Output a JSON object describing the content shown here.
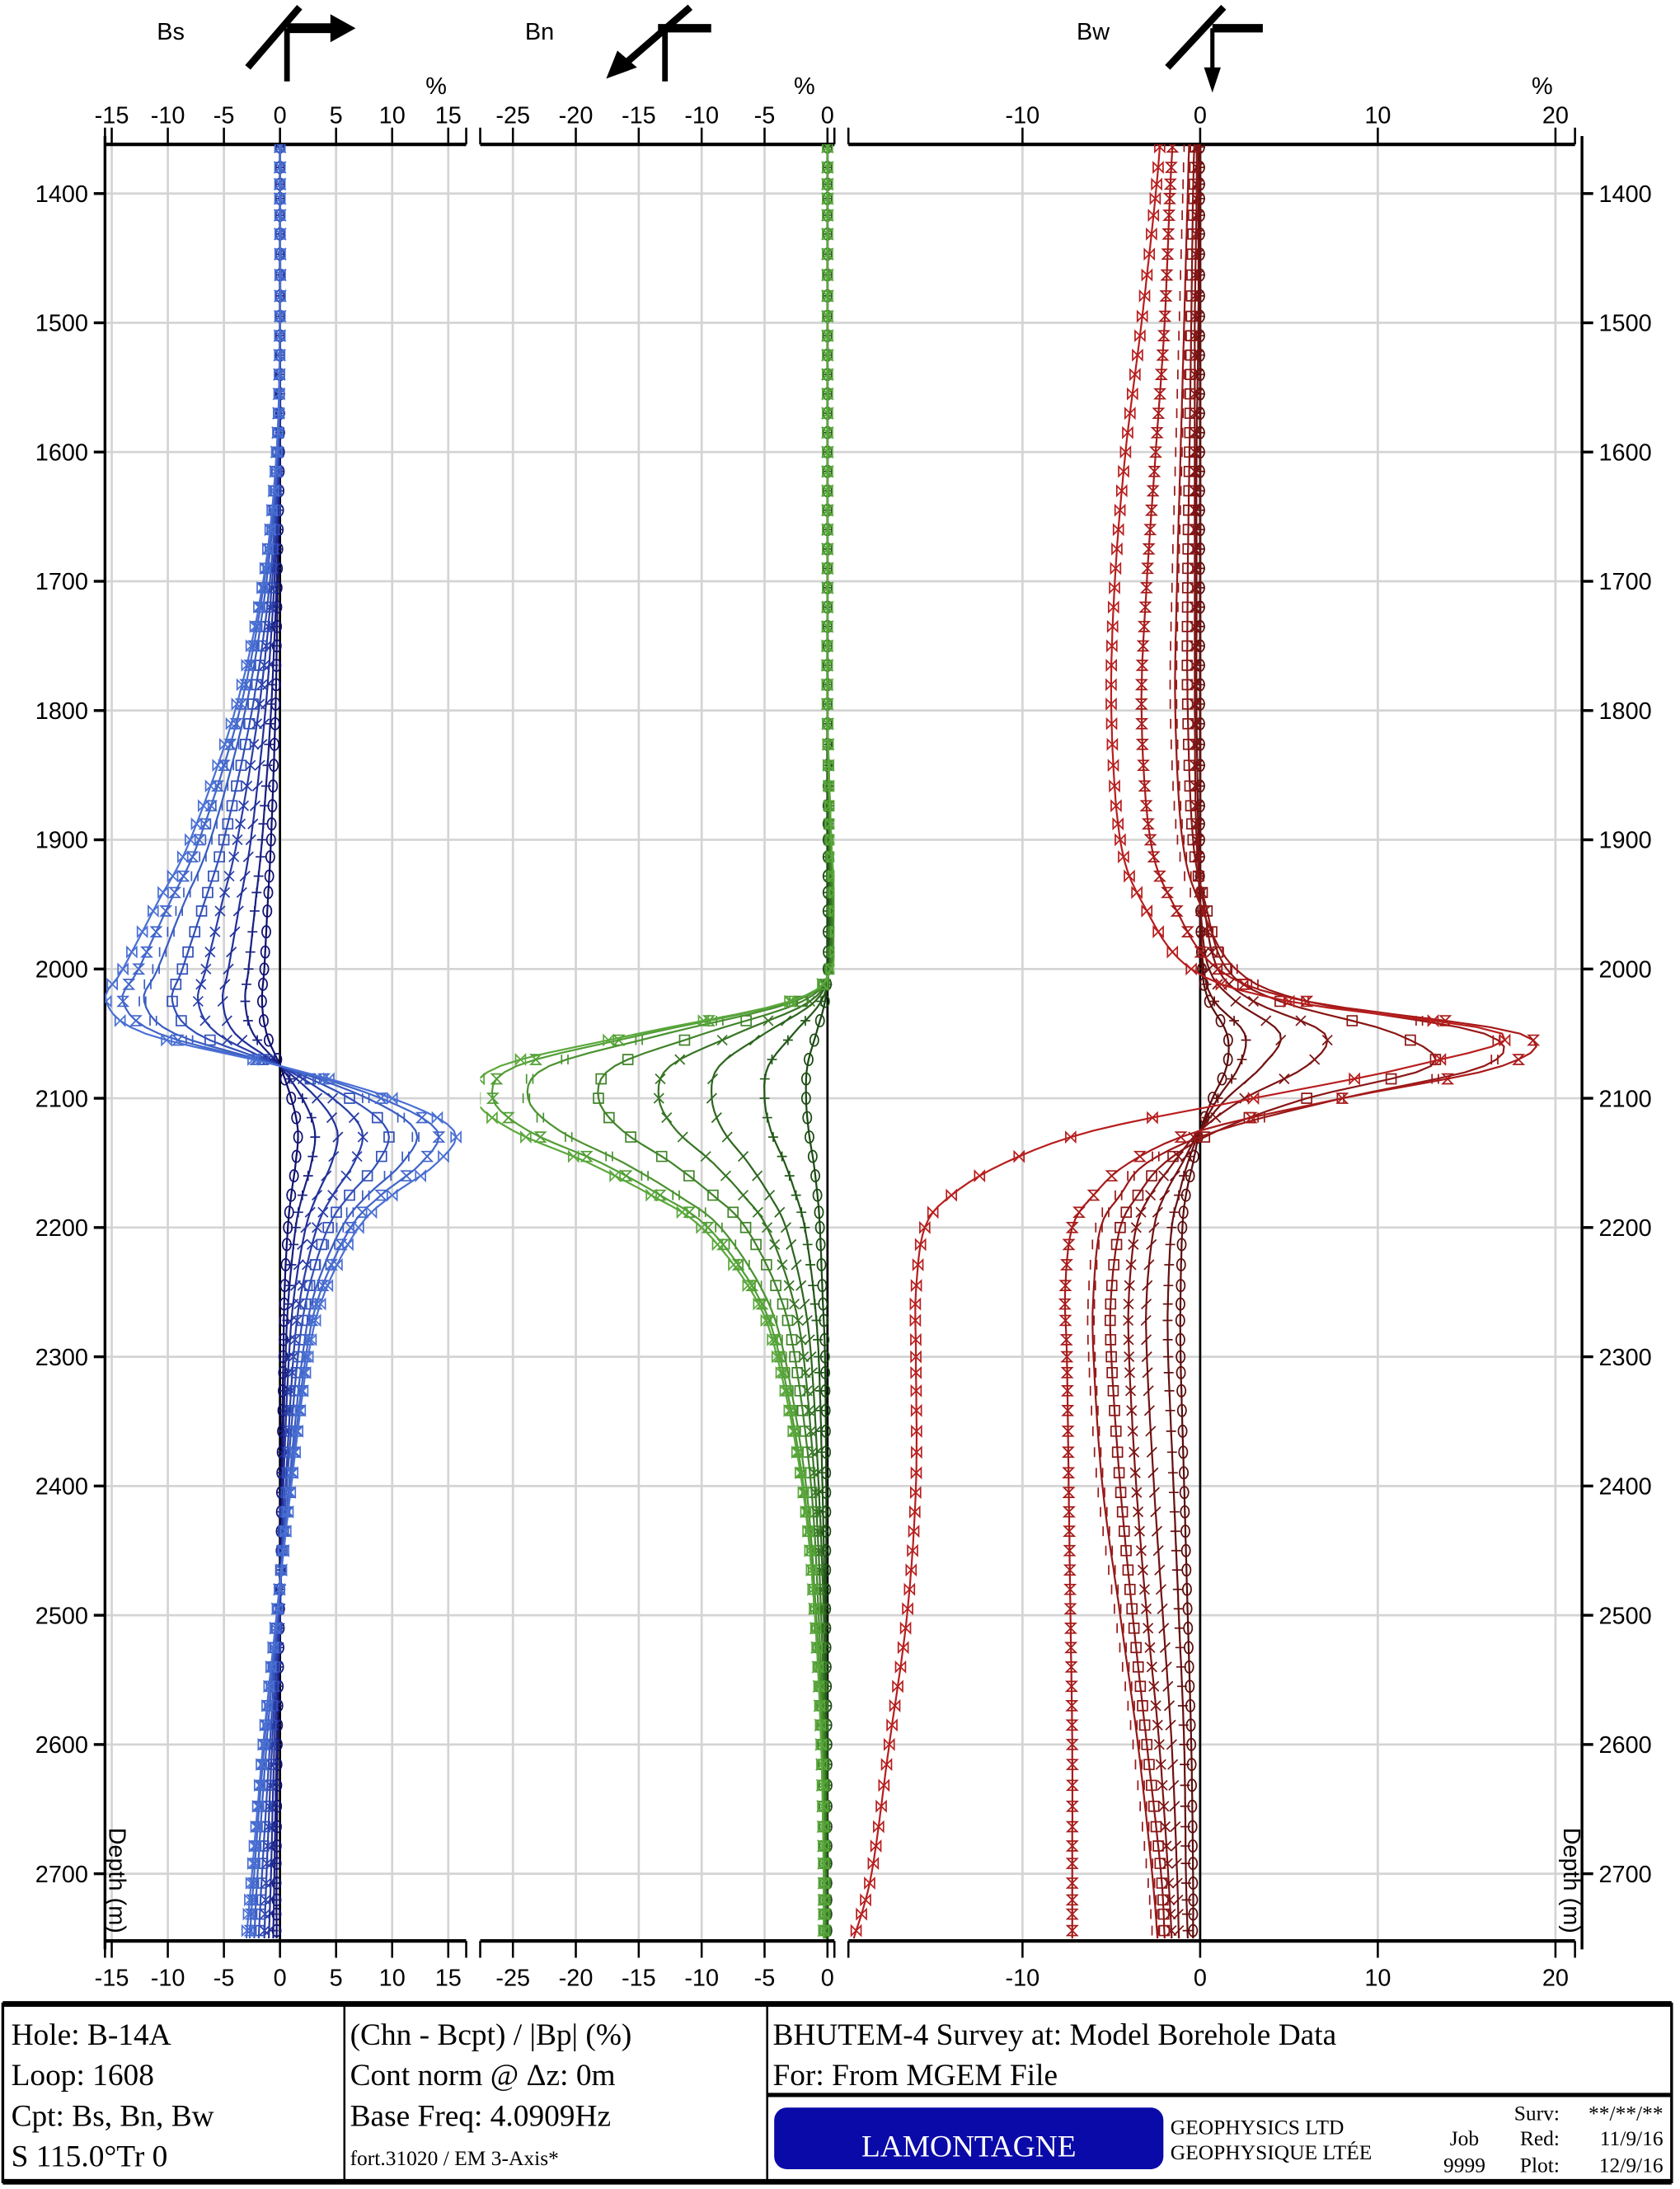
{
  "chart_data": {
    "type": "line",
    "ylabel": "Depth (m)",
    "ylim": [
      1362,
      2752
    ],
    "y_ticks": [
      1400,
      1500,
      1600,
      1700,
      1800,
      1900,
      2000,
      2100,
      2200,
      2300,
      2400,
      2500,
      2600,
      2700
    ],
    "depths": [
      1350,
      1400,
      1500,
      1600,
      1700,
      1800,
      1900,
      1950,
      2000,
      2025,
      2050,
      2075,
      2100,
      2125,
      2150,
      2175,
      2200,
      2250,
      2300,
      2400,
      2500,
      2600,
      2700,
      2750
    ],
    "grid": true,
    "panels": [
      {
        "title": "Bs",
        "unit": "%",
        "xlim": [
          -15.6,
          16.6
        ],
        "ticks": [
          -15,
          -10,
          -5,
          0,
          5,
          10,
          15
        ],
        "tick_labels": [
          "-15",
          "-10",
          "-5",
          "0",
          "5",
          "10",
          "15"
        ],
        "colors": [
          "#101070",
          "#1a2080",
          "#22309a",
          "#2a3ea8",
          "#3250b8",
          "#3a5cc2",
          "#4266ca",
          "#4a70d4"
        ],
        "series": [
          {
            "marker": "circle",
            "values": [
              0,
              0,
              0,
              0,
              -0.2,
              -0.4,
              -0.8,
              -1.1,
              -1.4,
              -1.6,
              -1.2,
              0,
              1,
              1.6,
              1.4,
              1,
              0.7,
              0.4,
              0.3,
              0.1,
              0,
              -0.2,
              -0.3,
              -0.3
            ]
          },
          {
            "marker": "plus",
            "values": [
              0,
              0,
              0,
              0,
              -0.3,
              -0.8,
              -1.6,
              -2.2,
              -2.8,
              -3.1,
              -2.4,
              0,
              2,
              3.1,
              2.8,
              2,
              1.4,
              0.8,
              0.5,
              0.2,
              0,
              -0.3,
              -0.5,
              -0.6
            ]
          },
          {
            "marker": "slash",
            "values": [
              0,
              0,
              0,
              -0.1,
              -0.5,
              -1.3,
              -2.6,
              -3.6,
              -4.6,
              -5.1,
              -4,
              0,
              3.3,
              5.1,
              4.6,
              3.3,
              2.3,
              1.3,
              0.8,
              0.3,
              0,
              -0.5,
              -0.8,
              -1
            ]
          },
          {
            "marker": "x",
            "values": [
              0,
              0,
              0,
              -0.1,
              -0.7,
              -1.9,
              -3.8,
              -5.2,
              -6.6,
              -7.3,
              -5.6,
              0,
              4.7,
              7.3,
              6.6,
              4.7,
              3.3,
              1.9,
              1.2,
              0.5,
              -0.1,
              -0.7,
              -1.2,
              -1.4
            ]
          },
          {
            "marker": "square",
            "values": [
              0,
              0,
              0,
              -0.2,
              -0.9,
              -2.5,
              -5,
              -6.8,
              -8.7,
              -9.6,
              -7.4,
              0,
              6.2,
              9.6,
              8.7,
              6.2,
              4.3,
              2.5,
              1.6,
              0.6,
              -0.2,
              -0.9,
              -1.6,
              -1.9
            ]
          },
          {
            "marker": "bar",
            "values": [
              0,
              0,
              0,
              -0.2,
              -1.2,
              -3.1,
              -6.2,
              -8.6,
              -10.9,
              -12.1,
              -9.4,
              0,
              7.8,
              12.1,
              10.9,
              7.8,
              5.5,
              3.1,
              2,
              0.8,
              -0.2,
              -1.2,
              -2,
              -2.3
            ]
          },
          {
            "marker": "hourglass",
            "values": [
              0,
              0,
              0,
              -0.3,
              -1.4,
              -3.6,
              -7.2,
              -9.9,
              -12.6,
              -14,
              -10.8,
              0,
              9,
              14,
              12.6,
              9,
              6.3,
              3.6,
              2.3,
              0.9,
              -0.3,
              -1.4,
              -2.3,
              -2.7
            ]
          },
          {
            "marker": "bowtie",
            "values": [
              0,
              0,
              0,
              -0.3,
              -1.5,
              -4,
              -8,
              -11,
              -14,
              -15.5,
              -12,
              0,
              10,
              15.5,
              14,
              10,
              7,
              4,
              2.5,
              1,
              -0.3,
              -1.5,
              -2.5,
              -3
            ]
          }
        ]
      },
      {
        "title": "Bn",
        "unit": "%",
        "xlim": [
          -27.6,
          0.55
        ],
        "ticks": [
          -25,
          -20,
          -15,
          -10,
          -5,
          0
        ],
        "tick_labels": [
          "-25",
          "-20",
          "-15",
          "-10",
          "-5",
          "0"
        ],
        "colors": [
          "#1a4a12",
          "#225818",
          "#2c661e",
          "#367424",
          "#40842a",
          "#4a9230",
          "#529e36",
          "#5aa83c"
        ],
        "series": [
          {
            "marker": "circle",
            "values": [
              0,
              0,
              0,
              0,
              0,
              0,
              0,
              0,
              0,
              -0.2,
              -0.9,
              -1.6,
              -1.7,
              -1.5,
              -1.1,
              -0.8,
              -0.6,
              -0.4,
              -0.2,
              -0.1,
              -0.1,
              0,
              0,
              0
            ]
          },
          {
            "marker": "plus",
            "values": [
              0,
              0,
              0,
              0,
              0,
              0,
              0.1,
              0.1,
              0.1,
              -0.5,
              -2.7,
              -4.7,
              -5,
              -4.5,
              -3.4,
              -2.5,
              -1.8,
              -1.1,
              -0.7,
              -0.4,
              -0.2,
              -0.1,
              -0.1,
              -0.1
            ]
          },
          {
            "marker": "slash",
            "values": [
              0,
              0,
              0,
              0,
              0,
              0,
              0.1,
              0.2,
              0.1,
              -1,
              -5,
              -8.6,
              -9.2,
              -8.3,
              -6.3,
              -4.6,
              -3.3,
              -2,
              -1.3,
              -0.7,
              -0.3,
              -0.2,
              -0.1,
              -0.1
            ]
          },
          {
            "marker": "x",
            "values": [
              0,
              0,
              0,
              0,
              0,
              0,
              0.1,
              0.3,
              0.1,
              -1.4,
              -7.2,
              -12.5,
              -13.4,
              -12,
              -9.1,
              -6.7,
              -4.8,
              -2.9,
              -1.9,
              -1,
              -0.5,
              -0.2,
              -0.1,
              -0.1
            ]
          },
          {
            "marker": "square",
            "values": [
              0,
              0,
              0,
              0,
              0,
              0,
              0.2,
              0.4,
              0.2,
              -2,
              -9.8,
              -16.9,
              -18.2,
              -16.3,
              -12.4,
              -9.1,
              -6.5,
              -3.9,
              -2.6,
              -1.3,
              -0.7,
              -0.3,
              -0.2,
              -0.2
            ]
          },
          {
            "marker": "bar",
            "values": [
              0,
              0,
              0,
              0,
              0,
              0,
              0.3,
              0.5,
              0.3,
              -2.6,
              -12.8,
              -22.1,
              -23.8,
              -21.3,
              -16.2,
              -11.9,
              -8.5,
              -5.1,
              -3.4,
              -1.7,
              -0.9,
              -0.4,
              -0.3,
              -0.3
            ]
          },
          {
            "marker": "hourglass",
            "values": [
              0,
              0,
              0,
              0,
              0,
              0,
              0.3,
              0.6,
              0.3,
              -2.9,
              -14.3,
              -24.7,
              -26.6,
              -23.8,
              -18,
              -13.3,
              -9.5,
              -5.7,
              -3.8,
              -1.9,
              -1,
              -0.5,
              -0.3,
              -0.3
            ]
          },
          {
            "marker": "bowtie",
            "values": [
              0,
              0,
              0,
              0,
              0,
              0,
              0.3,
              0.6,
              0.3,
              -3,
              -15,
              -26,
              -28,
              -25,
              -19,
              -14,
              -10,
              -6,
              -4,
              -2,
              -1,
              -0.5,
              -0.3,
              -0.3
            ]
          }
        ]
      },
      {
        "title": "Bw",
        "unit": "%",
        "xlim": [
          -19.8,
          21.1
        ],
        "ticks": [
          -10,
          0,
          10,
          20
        ],
        "tick_labels": [
          "-10",
          "0",
          "10",
          "20"
        ],
        "colors": [
          "#5a0c0c",
          "#661010",
          "#721212",
          "#7e1414",
          "#8a1616",
          "#981818",
          "#a81a1a",
          "#b81e1e"
        ],
        "series": [
          {
            "marker": "circle",
            "values": [
              0,
              0,
              0,
              0,
              0,
              0,
              0,
              0,
              0.1,
              0.5,
              1.5,
              1.5,
              0.7,
              0,
              -0.4,
              -0.8,
              -1,
              -1.1,
              -1.1,
              -0.9,
              -0.7,
              -0.5,
              -0.4,
              -0.4
            ]
          },
          {
            "marker": "plus",
            "values": [
              0,
              0,
              0,
              0,
              0,
              0,
              0,
              0,
              0.2,
              0.8,
              2.5,
              2.2,
              1,
              0,
              -0.7,
              -1.2,
              -1.6,
              -1.8,
              -1.8,
              -1.5,
              -1.2,
              -0.9,
              -0.8,
              -0.7
            ]
          },
          {
            "marker": "slash",
            "values": [
              -0.1,
              -0.1,
              -0.1,
              -0.2,
              -0.2,
              -0.2,
              -0.1,
              0,
              0.5,
              2,
              4.5,
              3.5,
              1.5,
              0,
              -1,
              -2,
              -2.6,
              -3,
              -3,
              -2.6,
              -2.1,
              -1.6,
              -1.3,
              -1.2
            ]
          },
          {
            "marker": "x",
            "values": [
              -0.2,
              -0.2,
              -0.3,
              -0.3,
              -0.3,
              -0.3,
              -0.2,
              0.2,
              1,
              3,
              7,
              6,
              2.5,
              0,
              -1.5,
              -2.8,
              -3.6,
              -4,
              -4,
              -3.6,
              -3,
              -2.3,
              -1.8,
              -1.6
            ]
          },
          {
            "marker": "square",
            "values": [
              -0.3,
              -0.4,
              -0.5,
              -0.6,
              -0.7,
              -0.7,
              -0.4,
              0.3,
              1.5,
              4.5,
              11,
              13,
              6,
              1,
              -2,
              -3.5,
              -4.5,
              -5,
              -5,
              -4.5,
              -3.8,
              -3,
              -2.2,
              -2
            ]
          },
          {
            "marker": "bar",
            "values": [
              -0.6,
              -0.7,
              -0.9,
              -1.1,
              -1.3,
              -1.4,
              -1,
              0,
              2,
              6,
              16,
              16,
              8,
              1,
              -3,
              -4.5,
              -5.6,
              -6,
              -6,
              -5.5,
              -4.5,
              -3.5,
              -2.7,
              -2.4
            ]
          },
          {
            "marker": "hourglass",
            "values": [
              -1.5,
              -1.7,
              -2,
              -2.5,
              -3,
              -3.3,
              -2.8,
              -1.5,
              1,
              6,
              18,
              17,
              8,
              0,
              -4,
              -6,
              -7.2,
              -7.6,
              -7.5,
              -7.4,
              -7.3,
              -7.2,
              -7.2,
              -7.2
            ]
          },
          {
            "marker": "bowtie",
            "values": [
              -2.2,
              -2.5,
              -3.3,
              -4.2,
              -4.8,
              -5,
              -4.5,
              -3.2,
              -0.5,
              5,
              17,
              12,
              3,
              -6,
              -11,
              -14,
              -15.5,
              -16,
              -16,
              -16,
              -16.5,
              -17.5,
              -18.5,
              -19.5
            ]
          }
        ]
      }
    ]
  },
  "footer": {
    "hole": "Hole: B-14A",
    "loop": "Loop: 1608",
    "cpt": "Cpt:  Bs, Bn, Bw",
    "survey_dir": "S 115.0°Tr 0",
    "norm": "(Chn - Bcpt) / |Bp| (%)",
    "cont_norm": "Cont norm @ Δz: 0m",
    "base_freq": "Base Freq: 4.0909Hz",
    "file": "fort.31020 / EM 3-Axis*",
    "survey_title": "BHUTEM-4 Survey at:  Model Borehole Data",
    "for": "For:  From MGEM File",
    "logo": "LAMONTAGNE",
    "company_en": "GEOPHYSICS LTD",
    "company_fr": "GEOPHYSIQUE LTÉE",
    "job_label": "Job",
    "job": "9999",
    "surv_label": "Surv:",
    "surv": "**/**/**",
    "red_label": "Red:",
    "red": "11/9/16",
    "plot_label": "Plot:",
    "plot": "12/9/16",
    "logo_color": "#0a0aa8"
  }
}
